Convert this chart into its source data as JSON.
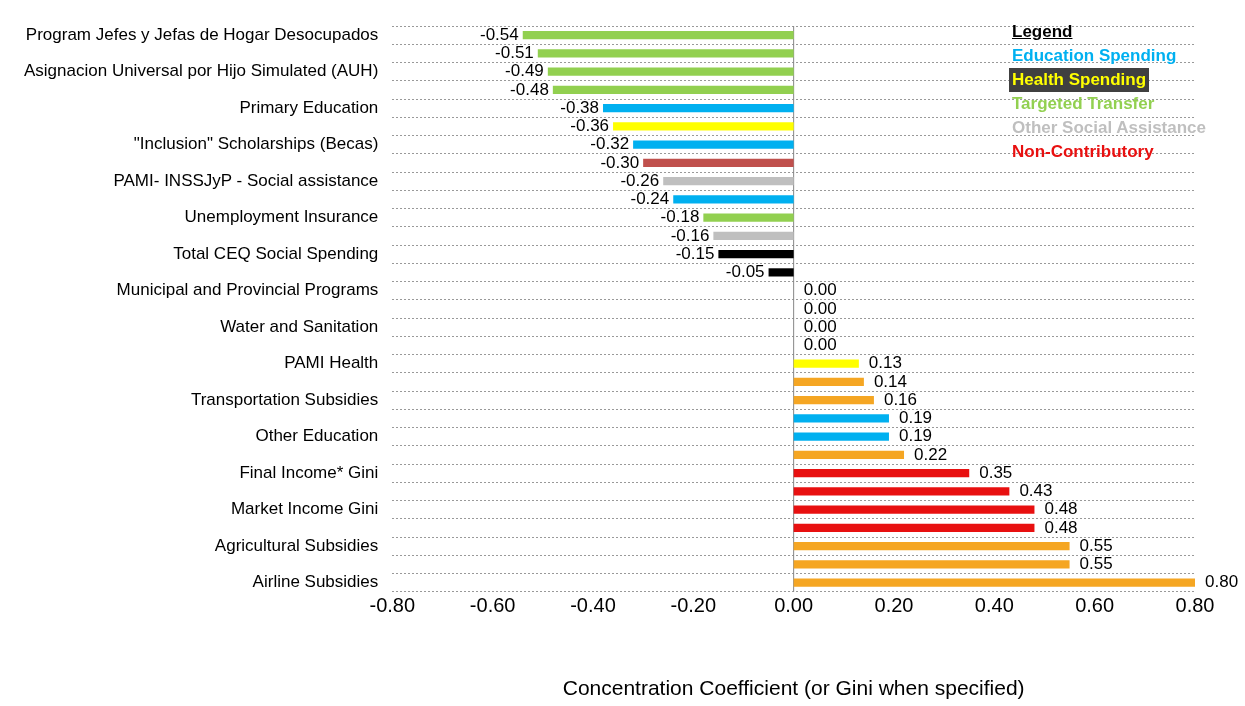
{
  "chart_data": {
    "type": "bar",
    "orientation": "horizontal",
    "stacked": true,
    "xlabel": "Concentration Coefficient (or Gini when specified)",
    "legend_title": "Legend",
    "legend": "top right",
    "grid": "y",
    "categories": [
      "Program Jefes y Jefas de Hogar Desocupados",
      null,
      "Asignacion Universal por Hijo Simulated (AUH)",
      null,
      "Primary Education",
      null,
      "\"Inclusion\" Scholarships (Becas)",
      null,
      "PAMI- INSSJyP - Social assistance",
      null,
      "Unemployment Insurance",
      null,
      "Total CEQ Social Spending",
      null,
      "Municipal and Provincial Programs",
      null,
      "Water and Sanitation",
      null,
      "PAMI Health",
      null,
      "Transportation Subsidies",
      null,
      "Other Education",
      null,
      "Final Income* Gini",
      null,
      "Market Income Gini",
      null,
      "Agricultural Subsidies",
      null,
      "Airline Subsidies"
    ],
    "xlim": [
      -0.8,
      0.8
    ],
    "xticks": [
      {
        "value": -0.8,
        "label": "-0.80"
      },
      {
        "value": -0.6,
        "label": "-0.60"
      },
      {
        "value": -0.4,
        "label": "-0.40"
      },
      {
        "value": -0.2,
        "label": "-0.20"
      },
      {
        "value": 0,
        "label": "0.00"
      },
      {
        "value": 0.2,
        "label": "0.20"
      },
      {
        "value": 0.4,
        "label": "0.40"
      },
      {
        "value": 0.6,
        "label": "0.60"
      },
      {
        "value": 0.8,
        "label": "0.80"
      }
    ],
    "series": [
      {
        "name": "Education Spending",
        "color": "#00b0f0",
        "values": [
          null,
          null,
          null,
          null,
          -0.38,
          null,
          -0.32,
          null,
          null,
          -0.24,
          null,
          null,
          null,
          null,
          null,
          null,
          null,
          null,
          null,
          null,
          null,
          0.19,
          0.19,
          null,
          null,
          null,
          null,
          null,
          null,
          null,
          null
        ],
        "value_labels": [
          null,
          null,
          null,
          null,
          "-0.38",
          null,
          "-0.32",
          null,
          null,
          "-0.24",
          null,
          null,
          null,
          null,
          null,
          null,
          null,
          null,
          null,
          null,
          null,
          "0.19",
          "0.19",
          null,
          null,
          null,
          null,
          null,
          null,
          null,
          null
        ]
      },
      {
        "name": "Health Spending",
        "color": "#ffff00",
        "values": [
          null,
          null,
          null,
          null,
          null,
          -0.36,
          null,
          null,
          null,
          null,
          null,
          null,
          null,
          null,
          null,
          null,
          null,
          null,
          0.13,
          null,
          null,
          null,
          null,
          null,
          null,
          null,
          null,
          null,
          null,
          null,
          null
        ],
        "value_labels": [
          null,
          null,
          null,
          null,
          null,
          "-0.36",
          null,
          null,
          null,
          null,
          null,
          null,
          null,
          null,
          null,
          null,
          null,
          null,
          "0.13",
          null,
          null,
          null,
          null,
          null,
          null,
          null,
          null,
          null,
          null,
          null,
          null
        ]
      },
      {
        "name": "Targeted Transfer",
        "color": "#92d050",
        "values": [
          -0.54,
          -0.51,
          -0.49,
          -0.48,
          null,
          null,
          null,
          null,
          null,
          null,
          -0.18,
          null,
          null,
          null,
          null,
          null,
          null,
          null,
          null,
          null,
          null,
          null,
          null,
          null,
          null,
          null,
          null,
          null,
          null,
          null,
          null
        ],
        "value_labels": [
          "-0.54",
          "-0.51",
          "-0.49",
          "-0.48",
          null,
          null,
          null,
          null,
          null,
          null,
          "-0.18",
          null,
          null,
          null,
          null,
          null,
          null,
          null,
          null,
          null,
          null,
          null,
          null,
          null,
          null,
          null,
          null,
          null,
          null,
          null,
          null
        ]
      },
      {
        "name": "Other Social Assistance",
        "color": "#bfbfbf",
        "values": [
          null,
          null,
          null,
          null,
          null,
          null,
          null,
          null,
          -0.26,
          null,
          null,
          -0.16,
          null,
          null,
          null,
          null,
          null,
          null,
          null,
          null,
          null,
          null,
          null,
          null,
          null,
          null,
          null,
          null,
          null,
          null,
          null
        ],
        "value_labels": [
          null,
          null,
          null,
          null,
          null,
          null,
          null,
          null,
          "-0.26",
          null,
          null,
          "-0.16",
          null,
          null,
          null,
          null,
          null,
          null,
          null,
          null,
          null,
          null,
          null,
          null,
          null,
          null,
          null,
          null,
          null,
          null,
          null
        ]
      },
      {
        "name": "Non-Contributory",
        "color": "#e81010",
        "values": [
          null,
          null,
          null,
          null,
          null,
          null,
          null,
          null,
          null,
          null,
          null,
          null,
          null,
          null,
          null,
          null,
          null,
          null,
          null,
          null,
          null,
          null,
          null,
          null,
          0.35,
          0.43,
          0.48,
          0.48,
          null,
          null,
          null
        ],
        "value_labels": [
          null,
          null,
          null,
          null,
          null,
          null,
          null,
          null,
          null,
          null,
          null,
          null,
          null,
          null,
          null,
          null,
          null,
          null,
          null,
          null,
          null,
          null,
          null,
          null,
          "0.35",
          "0.43",
          "0.48",
          "0.48",
          null,
          null,
          null
        ]
      },
      {
        "color": "#c0504d",
        "values": [
          null,
          null,
          null,
          null,
          null,
          null,
          null,
          -0.3,
          null,
          null,
          null,
          null,
          null,
          null,
          null,
          null,
          null,
          null,
          null,
          null,
          null,
          null,
          null,
          null,
          null,
          null,
          null,
          null,
          null,
          null,
          null
        ],
        "value_labels": [
          null,
          null,
          null,
          null,
          null,
          null,
          null,
          "-0.30",
          null,
          null,
          null,
          null,
          null,
          null,
          null,
          null,
          null,
          null,
          null,
          null,
          null,
          null,
          null,
          null,
          null,
          null,
          null,
          null,
          null,
          null,
          null
        ]
      },
      {
        "color": "#000000",
        "values": [
          null,
          null,
          null,
          null,
          null,
          null,
          null,
          null,
          null,
          null,
          null,
          null,
          -0.15,
          -0.05,
          null,
          null,
          null,
          null,
          null,
          null,
          null,
          null,
          null,
          null,
          null,
          null,
          null,
          null,
          null,
          null,
          null
        ],
        "value_labels": [
          null,
          null,
          null,
          null,
          null,
          null,
          null,
          null,
          null,
          null,
          null,
          null,
          "-0.15",
          "-0.05",
          null,
          null,
          null,
          null,
          null,
          null,
          null,
          null,
          null,
          null,
          null,
          null,
          null,
          null,
          null,
          null,
          null
        ]
      },
      {
        "color": "#f5a623",
        "values": [
          null,
          null,
          null,
          null,
          null,
          null,
          null,
          null,
          null,
          null,
          null,
          null,
          null,
          null,
          0,
          0,
          0,
          0,
          null,
          0.14,
          0.16,
          null,
          null,
          0.22,
          null,
          null,
          null,
          null,
          0.55,
          0.55,
          0.8
        ],
        "value_labels": [
          null,
          null,
          null,
          null,
          null,
          null,
          null,
          null,
          null,
          null,
          null,
          null,
          null,
          null,
          "0.00",
          "0.00",
          "0.00",
          "0.00",
          null,
          "0.14",
          "0.16",
          null,
          null,
          "0.22",
          null,
          null,
          null,
          null,
          "0.55",
          "0.55",
          "0.80"
        ]
      }
    ]
  }
}
